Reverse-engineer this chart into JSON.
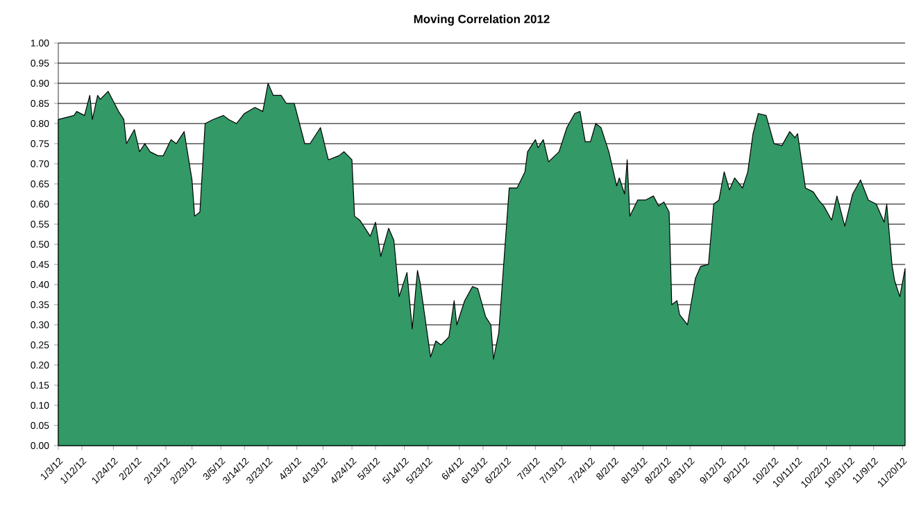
{
  "chart_data": {
    "type": "area",
    "title": "Moving Correlation 2012",
    "x": [
      "2012-01-03",
      "2012-01-09",
      "2012-01-10",
      "2012-01-13",
      "2012-01-15",
      "2012-01-16",
      "2012-01-18",
      "2012-01-19",
      "2012-01-22",
      "2012-01-26",
      "2012-01-28",
      "2012-01-29",
      "2012-02-01",
      "2012-02-03",
      "2012-02-05",
      "2012-02-07",
      "2012-02-10",
      "2012-02-12",
      "2012-02-15",
      "2012-02-17",
      "2012-02-20",
      "2012-02-23",
      "2012-02-24",
      "2012-02-26",
      "2012-02-28",
      "2012-03-02",
      "2012-03-06",
      "2012-03-08",
      "2012-03-11",
      "2012-03-14",
      "2012-03-18",
      "2012-03-21",
      "2012-03-23",
      "2012-03-25",
      "2012-03-28",
      "2012-03-30",
      "2012-04-02",
      "2012-04-06",
      "2012-04-08",
      "2012-04-12",
      "2012-04-15",
      "2012-04-19",
      "2012-04-21",
      "2012-04-24",
      "2012-04-25",
      "2012-04-27",
      "2012-05-01",
      "2012-05-03",
      "2012-05-05",
      "2012-05-08",
      "2012-05-10",
      "2012-05-12",
      "2012-05-15",
      "2012-05-17",
      "2012-05-19",
      "2012-05-20",
      "2012-05-24",
      "2012-05-26",
      "2012-05-28",
      "2012-05-31",
      "2012-06-02",
      "2012-06-03",
      "2012-06-06",
      "2012-06-09",
      "2012-06-11",
      "2012-06-14",
      "2012-06-16",
      "2012-06-17",
      "2012-06-19",
      "2012-06-21",
      "2012-06-23",
      "2012-06-26",
      "2012-06-29",
      "2012-06-30",
      "2012-07-03",
      "2012-07-04",
      "2012-07-06",
      "2012-07-08",
      "2012-07-12",
      "2012-07-15",
      "2012-07-18",
      "2012-07-20",
      "2012-07-22",
      "2012-07-24",
      "2012-07-26",
      "2012-07-28",
      "2012-07-31",
      "2012-08-03",
      "2012-08-04",
      "2012-08-06",
      "2012-08-07",
      "2012-08-08",
      "2012-08-11",
      "2012-08-14",
      "2012-08-17",
      "2012-08-19",
      "2012-08-21",
      "2012-08-23",
      "2012-08-24",
      "2012-08-26",
      "2012-08-27",
      "2012-08-30",
      "2012-09-02",
      "2012-09-04",
      "2012-09-07",
      "2012-09-09",
      "2012-09-11",
      "2012-09-13",
      "2012-09-15",
      "2012-09-17",
      "2012-09-20",
      "2012-09-22",
      "2012-09-24",
      "2012-09-26",
      "2012-09-29",
      "2012-10-02",
      "2012-10-05",
      "2012-10-08",
      "2012-10-10",
      "2012-10-11",
      "2012-10-14",
      "2012-10-17",
      "2012-10-19",
      "2012-10-21",
      "2012-10-24",
      "2012-10-26",
      "2012-10-29",
      "2012-11-01",
      "2012-11-04",
      "2012-11-07",
      "2012-11-10",
      "2012-11-13",
      "2012-11-14",
      "2012-11-16",
      "2012-11-17",
      "2012-11-19",
      "2012-11-21"
    ],
    "values": [
      0.81,
      0.82,
      0.83,
      0.82,
      0.87,
      0.81,
      0.87,
      0.86,
      0.88,
      0.83,
      0.81,
      0.75,
      0.785,
      0.73,
      0.75,
      0.73,
      0.72,
      0.72,
      0.76,
      0.75,
      0.78,
      0.66,
      0.57,
      0.58,
      0.8,
      0.81,
      0.82,
      0.81,
      0.8,
      0.825,
      0.84,
      0.83,
      0.9,
      0.87,
      0.87,
      0.85,
      0.85,
      0.75,
      0.75,
      0.79,
      0.71,
      0.72,
      0.73,
      0.71,
      0.57,
      0.56,
      0.52,
      0.555,
      0.47,
      0.54,
      0.51,
      0.37,
      0.43,
      0.29,
      0.435,
      0.405,
      0.22,
      0.26,
      0.25,
      0.27,
      0.36,
      0.3,
      0.36,
      0.395,
      0.39,
      0.32,
      0.3,
      0.215,
      0.28,
      0.46,
      0.64,
      0.64,
      0.68,
      0.73,
      0.76,
      0.74,
      0.76,
      0.705,
      0.73,
      0.79,
      0.825,
      0.83,
      0.755,
      0.755,
      0.8,
      0.79,
      0.73,
      0.645,
      0.665,
      0.625,
      0.71,
      0.57,
      0.61,
      0.61,
      0.62,
      0.595,
      0.605,
      0.58,
      0.35,
      0.36,
      0.325,
      0.3,
      0.415,
      0.445,
      0.45,
      0.6,
      0.61,
      0.68,
      0.635,
      0.665,
      0.64,
      0.68,
      0.775,
      0.825,
      0.82,
      0.75,
      0.745,
      0.78,
      0.765,
      0.775,
      0.64,
      0.63,
      0.61,
      0.595,
      0.56,
      0.62,
      0.545,
      0.625,
      0.66,
      0.61,
      0.6,
      0.555,
      0.6,
      0.45,
      0.41,
      0.37,
      0.44
    ],
    "color": "#339966",
    "xlim": [
      "2012-01-03",
      "2012-11-21"
    ],
    "xticks": [
      {
        "value": "2012-01-03",
        "label": "1/3/12"
      },
      {
        "value": "2012-01-12",
        "label": "1/12/12"
      },
      {
        "value": "2012-01-24",
        "label": "1/24/12"
      },
      {
        "value": "2012-02-02",
        "label": "2/2/12"
      },
      {
        "value": "2012-02-13",
        "label": "2/13/12"
      },
      {
        "value": "2012-02-23",
        "label": "2/23/12"
      },
      {
        "value": "2012-03-05",
        "label": "3/5/12"
      },
      {
        "value": "2012-03-14",
        "label": "3/14/12"
      },
      {
        "value": "2012-03-23",
        "label": "3/23/12"
      },
      {
        "value": "2012-04-03",
        "label": "4/3/12"
      },
      {
        "value": "2012-04-13",
        "label": "4/13/12"
      },
      {
        "value": "2012-04-24",
        "label": "4/24/12"
      },
      {
        "value": "2012-05-03",
        "label": "5/3/12"
      },
      {
        "value": "2012-05-14",
        "label": "5/14/12"
      },
      {
        "value": "2012-05-23",
        "label": "5/23/12"
      },
      {
        "value": "2012-06-04",
        "label": "6/4/12"
      },
      {
        "value": "2012-06-13",
        "label": "6/13/12"
      },
      {
        "value": "2012-06-22",
        "label": "6/22/12"
      },
      {
        "value": "2012-07-03",
        "label": "7/3/12"
      },
      {
        "value": "2012-07-13",
        "label": "7/13/12"
      },
      {
        "value": "2012-07-24",
        "label": "7/24/12"
      },
      {
        "value": "2012-08-02",
        "label": "8/2/12"
      },
      {
        "value": "2012-08-13",
        "label": "8/13/12"
      },
      {
        "value": "2012-08-22",
        "label": "8/22/12"
      },
      {
        "value": "2012-08-31",
        "label": "8/31/12"
      },
      {
        "value": "2012-09-12",
        "label": "9/12/12"
      },
      {
        "value": "2012-09-21",
        "label": "9/21/12"
      },
      {
        "value": "2012-10-02",
        "label": "10/2/12"
      },
      {
        "value": "2012-10-11",
        "label": "10/11/12"
      },
      {
        "value": "2012-10-22",
        "label": "10/22/12"
      },
      {
        "value": "2012-10-31",
        "label": "10/31/12"
      },
      {
        "value": "2012-11-09",
        "label": "11/9/12"
      },
      {
        "value": "2012-11-20",
        "label": "11/20/12"
      }
    ],
    "ylim": [
      0,
      1
    ],
    "yticks": [
      {
        "value": 0,
        "label": "0.00"
      },
      {
        "value": 0.05,
        "label": "0.05"
      },
      {
        "value": 0.1,
        "label": "0.10"
      },
      {
        "value": 0.15,
        "label": "0.15"
      },
      {
        "value": 0.2,
        "label": "0.20"
      },
      {
        "value": 0.25,
        "label": "0.25"
      },
      {
        "value": 0.3,
        "label": "0.30"
      },
      {
        "value": 0.35,
        "label": "0.35"
      },
      {
        "value": 0.4,
        "label": "0.40"
      },
      {
        "value": 0.45,
        "label": "0.45"
      },
      {
        "value": 0.5,
        "label": "0.50"
      },
      {
        "value": 0.55,
        "label": "0.55"
      },
      {
        "value": 0.6,
        "label": "0.60"
      },
      {
        "value": 0.65,
        "label": "0.65"
      },
      {
        "value": 0.7,
        "label": "0.70"
      },
      {
        "value": 0.75,
        "label": "0.75"
      },
      {
        "value": 0.8,
        "label": "0.80"
      },
      {
        "value": 0.85,
        "label": "0.85"
      },
      {
        "value": 0.9,
        "label": "0.90"
      },
      {
        "value": 0.95,
        "label": "0.95"
      },
      {
        "value": 1,
        "label": "1.00"
      }
    ],
    "grid": "y"
  }
}
